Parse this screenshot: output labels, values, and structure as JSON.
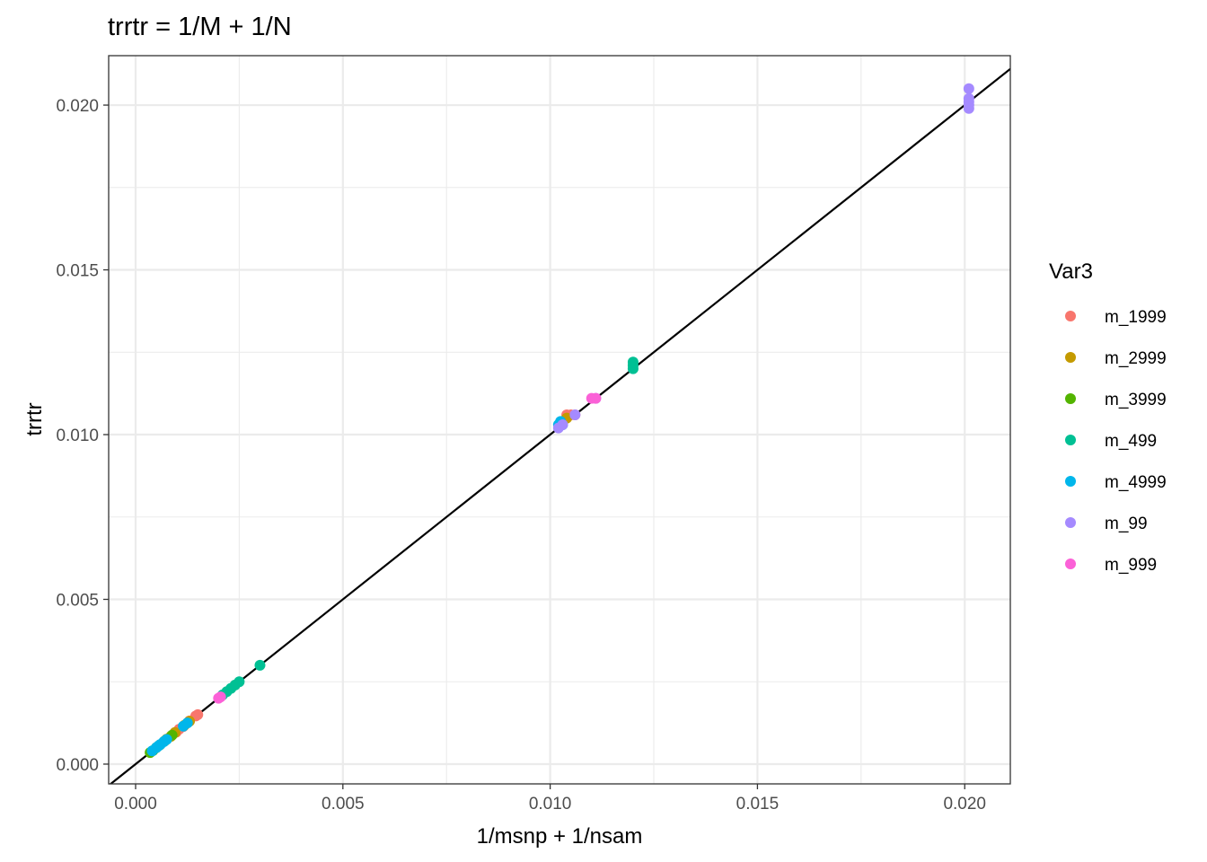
{
  "chart_data": {
    "type": "scatter",
    "title": "trrtr = 1/M + 1/N",
    "xlabel": "1/msnp + 1/nsam",
    "ylabel": "trrtr",
    "xlim": [
      -0.00065,
      0.0211
    ],
    "ylim": [
      -0.0006,
      0.0215
    ],
    "x_ticks": [
      0.0,
      0.005,
      0.01,
      0.015,
      0.02
    ],
    "x_tick_labels": [
      "0.000",
      "0.005",
      "0.010",
      "0.015",
      "0.020"
    ],
    "y_ticks": [
      0.0,
      0.005,
      0.01,
      0.015,
      0.02
    ],
    "y_tick_labels": [
      "0.000",
      "0.005",
      "0.010",
      "0.015",
      "0.020"
    ],
    "grid": true,
    "reference_line": {
      "slope": 1,
      "intercept": 0
    },
    "legend": {
      "title": "Var3",
      "position": "right"
    },
    "series": [
      {
        "name": "m_1999",
        "color": "#F8766D",
        "points": [
          [
            0.00098,
            0.00097
          ],
          [
            0.00105,
            0.00106
          ],
          [
            0.00115,
            0.00114
          ],
          [
            0.0013,
            0.00131
          ],
          [
            0.00145,
            0.00146
          ],
          [
            0.0015,
            0.0015
          ],
          [
            0.0104,
            0.0106
          ],
          [
            0.0105,
            0.0106
          ],
          [
            0.0106,
            0.0106
          ]
        ]
      },
      {
        "name": "m_2999",
        "color": "#C49A00",
        "points": [
          [
            0.00075,
            0.00076
          ],
          [
            0.00085,
            0.00084
          ],
          [
            0.00095,
            0.00096
          ],
          [
            0.00118,
            0.00118
          ],
          [
            0.0013,
            0.0013
          ],
          [
            0.0103,
            0.0104
          ],
          [
            0.0104,
            0.0105
          ]
        ]
      },
      {
        "name": "m_3999",
        "color": "#53B400",
        "points": [
          [
            0.00035,
            0.00035
          ],
          [
            0.00042,
            0.00041
          ],
          [
            0.0005,
            0.0005
          ],
          [
            0.00058,
            0.00058
          ],
          [
            0.0007,
            0.0007
          ],
          [
            0.00088,
            0.00088
          ]
        ]
      },
      {
        "name": "m_499",
        "color": "#00C094",
        "points": [
          [
            0.0021,
            0.0021
          ],
          [
            0.0022,
            0.0022
          ],
          [
            0.0023,
            0.0023
          ],
          [
            0.0024,
            0.0024
          ],
          [
            0.0025,
            0.0025
          ],
          [
            0.003,
            0.003
          ],
          [
            0.012,
            0.0121
          ],
          [
            0.012,
            0.0122
          ],
          [
            0.012,
            0.012
          ]
        ]
      },
      {
        "name": "m_4999",
        "color": "#00B6EB",
        "points": [
          [
            0.0004,
            0.0004
          ],
          [
            0.0005,
            0.0005
          ],
          [
            0.00055,
            0.00055
          ],
          [
            0.0006,
            0.0006
          ],
          [
            0.00068,
            0.00068
          ],
          [
            0.00075,
            0.00075
          ],
          [
            0.00115,
            0.00115
          ],
          [
            0.00125,
            0.00125
          ],
          [
            0.0102,
            0.0103
          ],
          [
            0.01025,
            0.0104
          ],
          [
            0.0103,
            0.0103
          ]
        ]
      },
      {
        "name": "m_99",
        "color": "#A58AFF",
        "points": [
          [
            0.0201,
            0.0205
          ],
          [
            0.0201,
            0.0202
          ],
          [
            0.0201,
            0.0201
          ],
          [
            0.0201,
            0.02
          ],
          [
            0.0201,
            0.0199
          ],
          [
            0.0102,
            0.0102
          ],
          [
            0.0103,
            0.0103
          ],
          [
            0.0106,
            0.0106
          ],
          [
            0.0111,
            0.0111
          ]
        ]
      },
      {
        "name": "m_999",
        "color": "#FB61D7",
        "points": [
          [
            0.002,
            0.002
          ],
          [
            0.00205,
            0.00204
          ],
          [
            0.011,
            0.0111
          ],
          [
            0.0111,
            0.0111
          ]
        ]
      }
    ]
  }
}
